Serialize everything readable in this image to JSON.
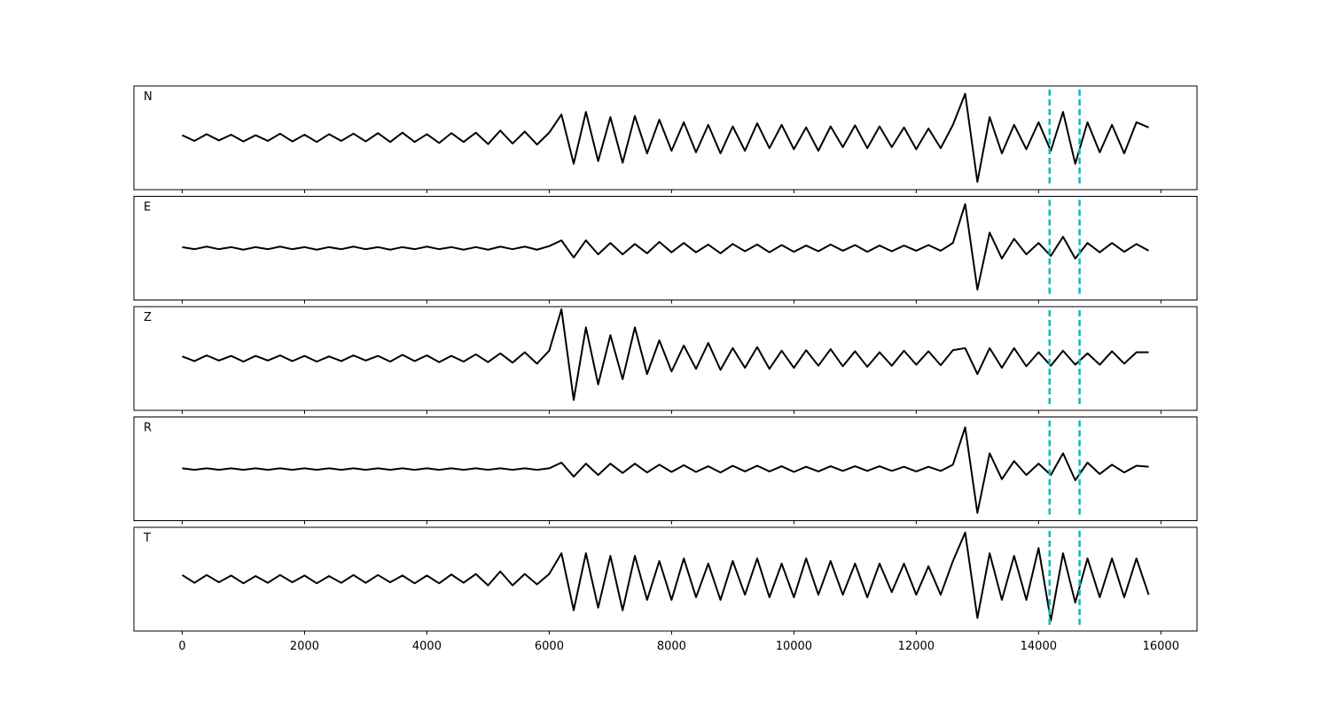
{
  "chart_data": {
    "type": "line",
    "subplots": true,
    "x": [
      0,
      200,
      400,
      600,
      800,
      1000,
      1200,
      1400,
      1600,
      1800,
      2000,
      2200,
      2400,
      2600,
      2800,
      3000,
      3200,
      3400,
      3600,
      3800,
      4000,
      4200,
      4400,
      4600,
      4800,
      5000,
      5200,
      5400,
      5600,
      5800,
      6000,
      6200,
      6400,
      6600,
      6800,
      7000,
      7200,
      7400,
      7600,
      7800,
      8000,
      8200,
      8400,
      8600,
      8800,
      9000,
      9200,
      9400,
      9600,
      9800,
      10000,
      10200,
      10400,
      10600,
      10800,
      11000,
      11200,
      11400,
      11600,
      11800,
      12000,
      12200,
      12400,
      12600,
      12800,
      13000,
      13200,
      13400,
      13600,
      13800,
      14000,
      14200,
      14400,
      14600,
      14800,
      15000,
      15200,
      15400,
      15600,
      15800
    ],
    "xlim": [
      -790,
      16590
    ],
    "xticks": [
      0,
      2000,
      4000,
      6000,
      8000,
      10000,
      12000,
      14000,
      16000
    ],
    "ylim": [
      -1,
      1
    ],
    "vlines": [
      14180,
      14670
    ],
    "vline_color": "#00bfbf",
    "series": [
      {
        "name": "N",
        "color": "#000000",
        "values": [
          0.05,
          -0.06,
          0.07,
          -0.05,
          0.06,
          -0.07,
          0.05,
          -0.06,
          0.08,
          -0.07,
          0.06,
          -0.08,
          0.07,
          -0.06,
          0.08,
          -0.07,
          0.09,
          -0.08,
          0.1,
          -0.08,
          0.07,
          -0.1,
          0.09,
          -0.08,
          0.1,
          -0.12,
          0.14,
          -0.11,
          0.12,
          -0.13,
          0.1,
          0.45,
          -0.5,
          0.5,
          -0.45,
          0.4,
          -0.48,
          0.42,
          -0.3,
          0.35,
          -0.25,
          0.3,
          -0.28,
          0.25,
          -0.3,
          0.22,
          -0.25,
          0.28,
          -0.2,
          0.25,
          -0.22,
          0.2,
          -0.25,
          0.22,
          -0.18,
          0.24,
          -0.2,
          0.22,
          -0.18,
          0.2,
          -0.22,
          0.18,
          -0.2,
          0.25,
          0.85,
          -0.85,
          0.4,
          -0.3,
          0.25,
          -0.22,
          0.3,
          -0.25,
          0.5,
          -0.5,
          0.3,
          -0.28,
          0.25,
          -0.3,
          0.3,
          0.2
        ]
      },
      {
        "name": "E",
        "color": "#000000",
        "values": [
          0.02,
          -0.02,
          0.03,
          -0.02,
          0.02,
          -0.03,
          0.02,
          -0.02,
          0.03,
          -0.02,
          0.02,
          -0.03,
          0.02,
          -0.02,
          0.03,
          -0.02,
          0.02,
          -0.03,
          0.02,
          -0.02,
          0.03,
          -0.02,
          0.02,
          -0.03,
          0.02,
          -0.03,
          0.03,
          -0.02,
          0.03,
          -0.03,
          0.04,
          0.15,
          -0.18,
          0.15,
          -0.12,
          0.1,
          -0.12,
          0.08,
          -0.1,
          0.12,
          -0.08,
          0.1,
          -0.08,
          0.07,
          -0.1,
          0.08,
          -0.06,
          0.07,
          -0.08,
          0.06,
          -0.07,
          0.05,
          -0.06,
          0.07,
          -0.05,
          0.06,
          -0.07,
          0.05,
          -0.06,
          0.05,
          -0.05,
          0.06,
          -0.05,
          0.1,
          0.85,
          -0.8,
          0.3,
          -0.2,
          0.18,
          -0.12,
          0.1,
          -0.15,
          0.22,
          -0.2,
          0.1,
          -0.08,
          0.1,
          -0.07,
          0.08,
          -0.05
        ]
      },
      {
        "name": "Z",
        "color": "#000000",
        "values": [
          0.04,
          -0.05,
          0.06,
          -0.04,
          0.05,
          -0.06,
          0.05,
          -0.04,
          0.06,
          -0.05,
          0.05,
          -0.06,
          0.04,
          -0.05,
          0.06,
          -0.04,
          0.05,
          -0.06,
          0.07,
          -0.05,
          0.06,
          -0.07,
          0.05,
          -0.06,
          0.08,
          -0.07,
          0.1,
          -0.08,
          0.12,
          -0.1,
          0.15,
          0.95,
          -0.8,
          0.6,
          -0.5,
          0.45,
          -0.4,
          0.6,
          -0.3,
          0.35,
          -0.25,
          0.25,
          -0.2,
          0.3,
          -0.22,
          0.2,
          -0.18,
          0.22,
          -0.2,
          0.15,
          -0.18,
          0.16,
          -0.14,
          0.18,
          -0.15,
          0.14,
          -0.16,
          0.12,
          -0.14,
          0.15,
          -0.12,
          0.14,
          -0.13,
          0.16,
          0.2,
          -0.3,
          0.2,
          -0.18,
          0.2,
          -0.15,
          0.12,
          -0.14,
          0.15,
          -0.12,
          0.1,
          -0.12,
          0.14,
          -0.1,
          0.12,
          0.12
        ]
      },
      {
        "name": "R",
        "color": "#000000",
        "values": [
          0.01,
          -0.02,
          0.01,
          -0.02,
          0.01,
          -0.02,
          0.01,
          -0.02,
          0.01,
          -0.02,
          0.01,
          -0.02,
          0.01,
          -0.02,
          0.01,
          -0.02,
          0.01,
          -0.02,
          0.01,
          -0.02,
          0.01,
          -0.02,
          0.01,
          -0.02,
          0.01,
          -0.02,
          0.01,
          -0.02,
          0.01,
          -0.02,
          0.01,
          0.12,
          -0.15,
          0.1,
          -0.12,
          0.1,
          -0.08,
          0.1,
          -0.07,
          0.08,
          -0.06,
          0.07,
          -0.06,
          0.05,
          -0.07,
          0.06,
          -0.05,
          0.06,
          -0.05,
          0.05,
          -0.06,
          0.04,
          -0.05,
          0.05,
          -0.04,
          0.05,
          -0.04,
          0.05,
          -0.04,
          0.04,
          -0.05,
          0.04,
          -0.04,
          0.08,
          0.8,
          -0.85,
          0.3,
          -0.2,
          0.15,
          -0.12,
          0.1,
          -0.12,
          0.3,
          -0.22,
          0.12,
          -0.1,
          0.08,
          -0.07,
          0.06,
          0.04
        ]
      },
      {
        "name": "T",
        "color": "#000000",
        "values": [
          0.08,
          -0.07,
          0.08,
          -0.06,
          0.07,
          -0.08,
          0.06,
          -0.07,
          0.08,
          -0.06,
          0.07,
          -0.08,
          0.06,
          -0.07,
          0.08,
          -0.07,
          0.08,
          -0.06,
          0.07,
          -0.08,
          0.07,
          -0.08,
          0.09,
          -0.07,
          0.1,
          -0.12,
          0.15,
          -0.12,
          0.1,
          -0.1,
          0.1,
          0.5,
          -0.6,
          0.5,
          -0.55,
          0.45,
          -0.6,
          0.45,
          -0.4,
          0.35,
          -0.4,
          0.4,
          -0.35,
          0.3,
          -0.4,
          0.35,
          -0.3,
          0.4,
          -0.35,
          0.3,
          -0.35,
          0.4,
          -0.3,
          0.35,
          -0.3,
          0.3,
          -0.35,
          0.3,
          -0.25,
          0.3,
          -0.3,
          0.25,
          -0.3,
          0.35,
          0.9,
          -0.75,
          0.5,
          -0.4,
          0.45,
          -0.4,
          0.6,
          -0.8,
          0.5,
          -0.45,
          0.4,
          -0.35,
          0.4,
          -0.35,
          0.4,
          -0.3
        ]
      }
    ]
  }
}
